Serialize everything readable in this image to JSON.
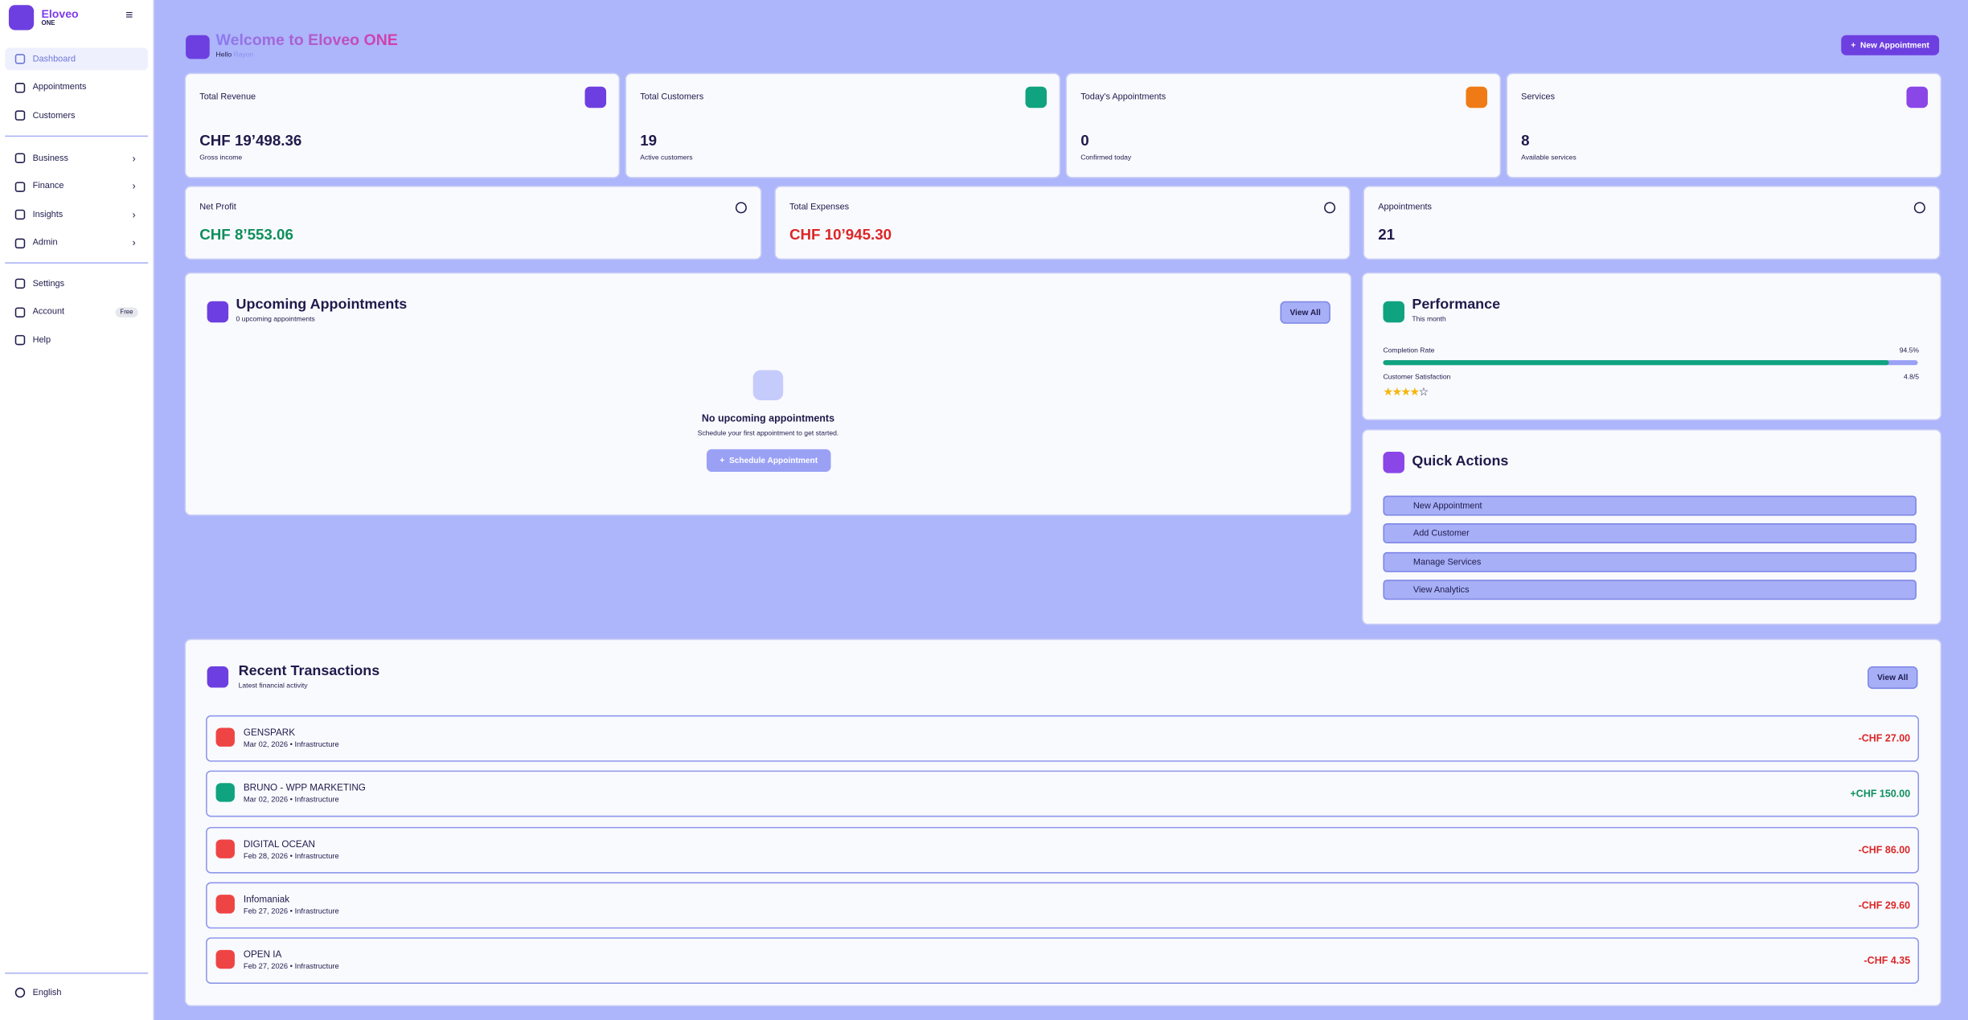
{
  "sidebar": {
    "brand": "Eloveo",
    "edition": "ONE",
    "primary": [
      "Dashboard",
      "Appointments",
      "Customers"
    ],
    "groups": [
      "Business",
      "Finance",
      "Insights",
      "Admin"
    ],
    "secondary": [
      "Settings",
      "Account",
      "Help"
    ],
    "account_badge": "Free",
    "language": "English"
  },
  "header": {
    "title": "Welcome to Eloveo ONE",
    "greeting": "Hello",
    "user": "Rayon",
    "button": "New Appointment"
  },
  "stats": [
    {
      "label": "Total Revenue",
      "value": "CHF 19’498.36",
      "sub": "Gross income",
      "color": "#6d3fe0"
    },
    {
      "label": "Total Customers",
      "value": "19",
      "sub": "Active customers",
      "color": "#10a37f"
    },
    {
      "label": "Today's Appointments",
      "value": "0",
      "sub": "Confirmed today",
      "color": "#f07b16"
    },
    {
      "label": "Services",
      "value": "8",
      "sub": "Available services",
      "color": "#8b46e8"
    }
  ],
  "summary": [
    {
      "label": "Net Profit",
      "value": "CHF 8’553.06",
      "color": "#0e8f5c"
    },
    {
      "label": "Total Expenses",
      "value": "CHF 10’945.30",
      "color": "#dc2626"
    },
    {
      "label": "Appointments",
      "value": "21",
      "color": "#1e1b4b"
    }
  ],
  "upcoming": {
    "title": "Upcoming Appointments",
    "subtitle": "0 upcoming appointments",
    "view_all": "View All",
    "empty_title": "No upcoming appointments",
    "empty_text": "Schedule your first appointment to get started.",
    "button": "Schedule Appointment"
  },
  "performance": {
    "title": "Performance",
    "subtitle": "This month",
    "completion": {
      "label": "Completion Rate",
      "value": 94.5,
      "value_label": "94.5%"
    },
    "satisfaction": {
      "label": "Customer Satisfaction",
      "value_label": "4.8/5"
    }
  },
  "quick_actions": {
    "title": "Quick Actions",
    "items": [
      "New Appointment",
      "Add Customer",
      "Manage Services",
      "View Analytics"
    ]
  },
  "transactions": {
    "title": "Recent Transactions",
    "subtitle": "Latest financial activity",
    "view_all": "View All",
    "rows": [
      {
        "name": "GENSPARK",
        "meta": "Mar 02, 2026 • Infrastructure",
        "amount": "-CHF 27.00",
        "color": "#dc2626"
      },
      {
        "name": "BRUNO - WPP MARKETING",
        "meta": "Mar 02, 2026 • Infrastructure",
        "amount": "+CHF 150.00",
        "color": "#0e8f5c"
      },
      {
        "name": "DIGITAL OCEAN",
        "meta": "Feb 28, 2026 • Infrastructure",
        "amount": "-CHF 86.00",
        "color": "#dc2626"
      },
      {
        "name": "Infomaniak",
        "meta": "Feb 27, 2026 • Infrastructure",
        "amount": "-CHF 29.60",
        "color": "#dc2626"
      },
      {
        "name": "OPEN IA",
        "meta": "Feb 27, 2026 • Infrastructure",
        "amount": "-CHF 4.35",
        "color": "#dc2626"
      }
    ]
  }
}
